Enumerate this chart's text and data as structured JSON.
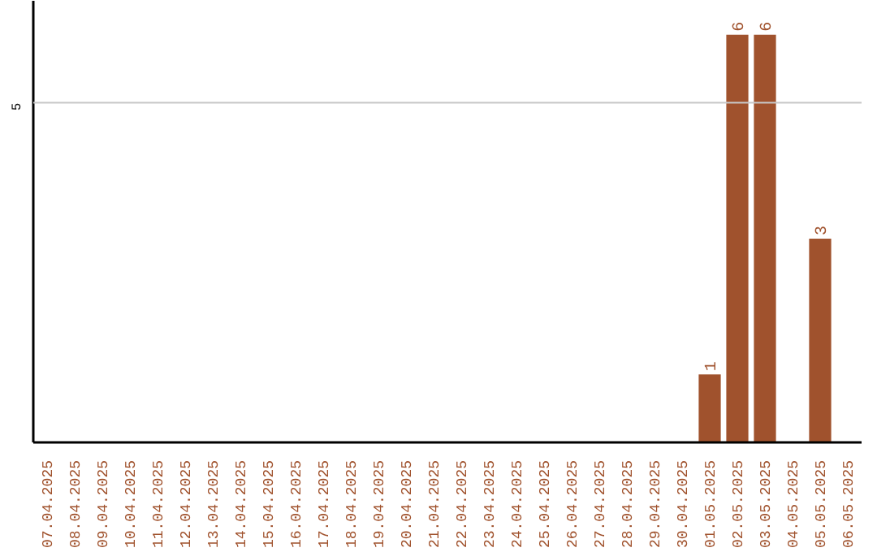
{
  "chart_data": {
    "type": "bar",
    "categories": [
      "07.04.2025",
      "08.04.2025",
      "09.04.2025",
      "10.04.2025",
      "11.04.2025",
      "12.04.2025",
      "13.04.2025",
      "14.04.2025",
      "15.04.2025",
      "16.04.2025",
      "17.04.2025",
      "18.04.2025",
      "19.04.2025",
      "20.04.2025",
      "21.04.2025",
      "22.04.2025",
      "23.04.2025",
      "24.04.2025",
      "25.04.2025",
      "26.04.2025",
      "27.04.2025",
      "28.04.2025",
      "29.04.2025",
      "30.04.2025",
      "01.05.2025",
      "02.05.2025",
      "03.05.2025",
      "04.05.2025",
      "05.05.2025",
      "06.05.2025"
    ],
    "values": [
      null,
      null,
      null,
      null,
      null,
      null,
      null,
      null,
      null,
      null,
      null,
      null,
      null,
      null,
      null,
      null,
      null,
      null,
      null,
      null,
      null,
      null,
      null,
      null,
      1,
      6,
      6,
      null,
      3,
      null
    ],
    "data_labels": true,
    "color": "#a0522d",
    "ref_lines": [
      {
        "axis": "y",
        "value": 5,
        "label": "5",
        "color": "#c8c8c8"
      }
    ],
    "grid": false
  }
}
